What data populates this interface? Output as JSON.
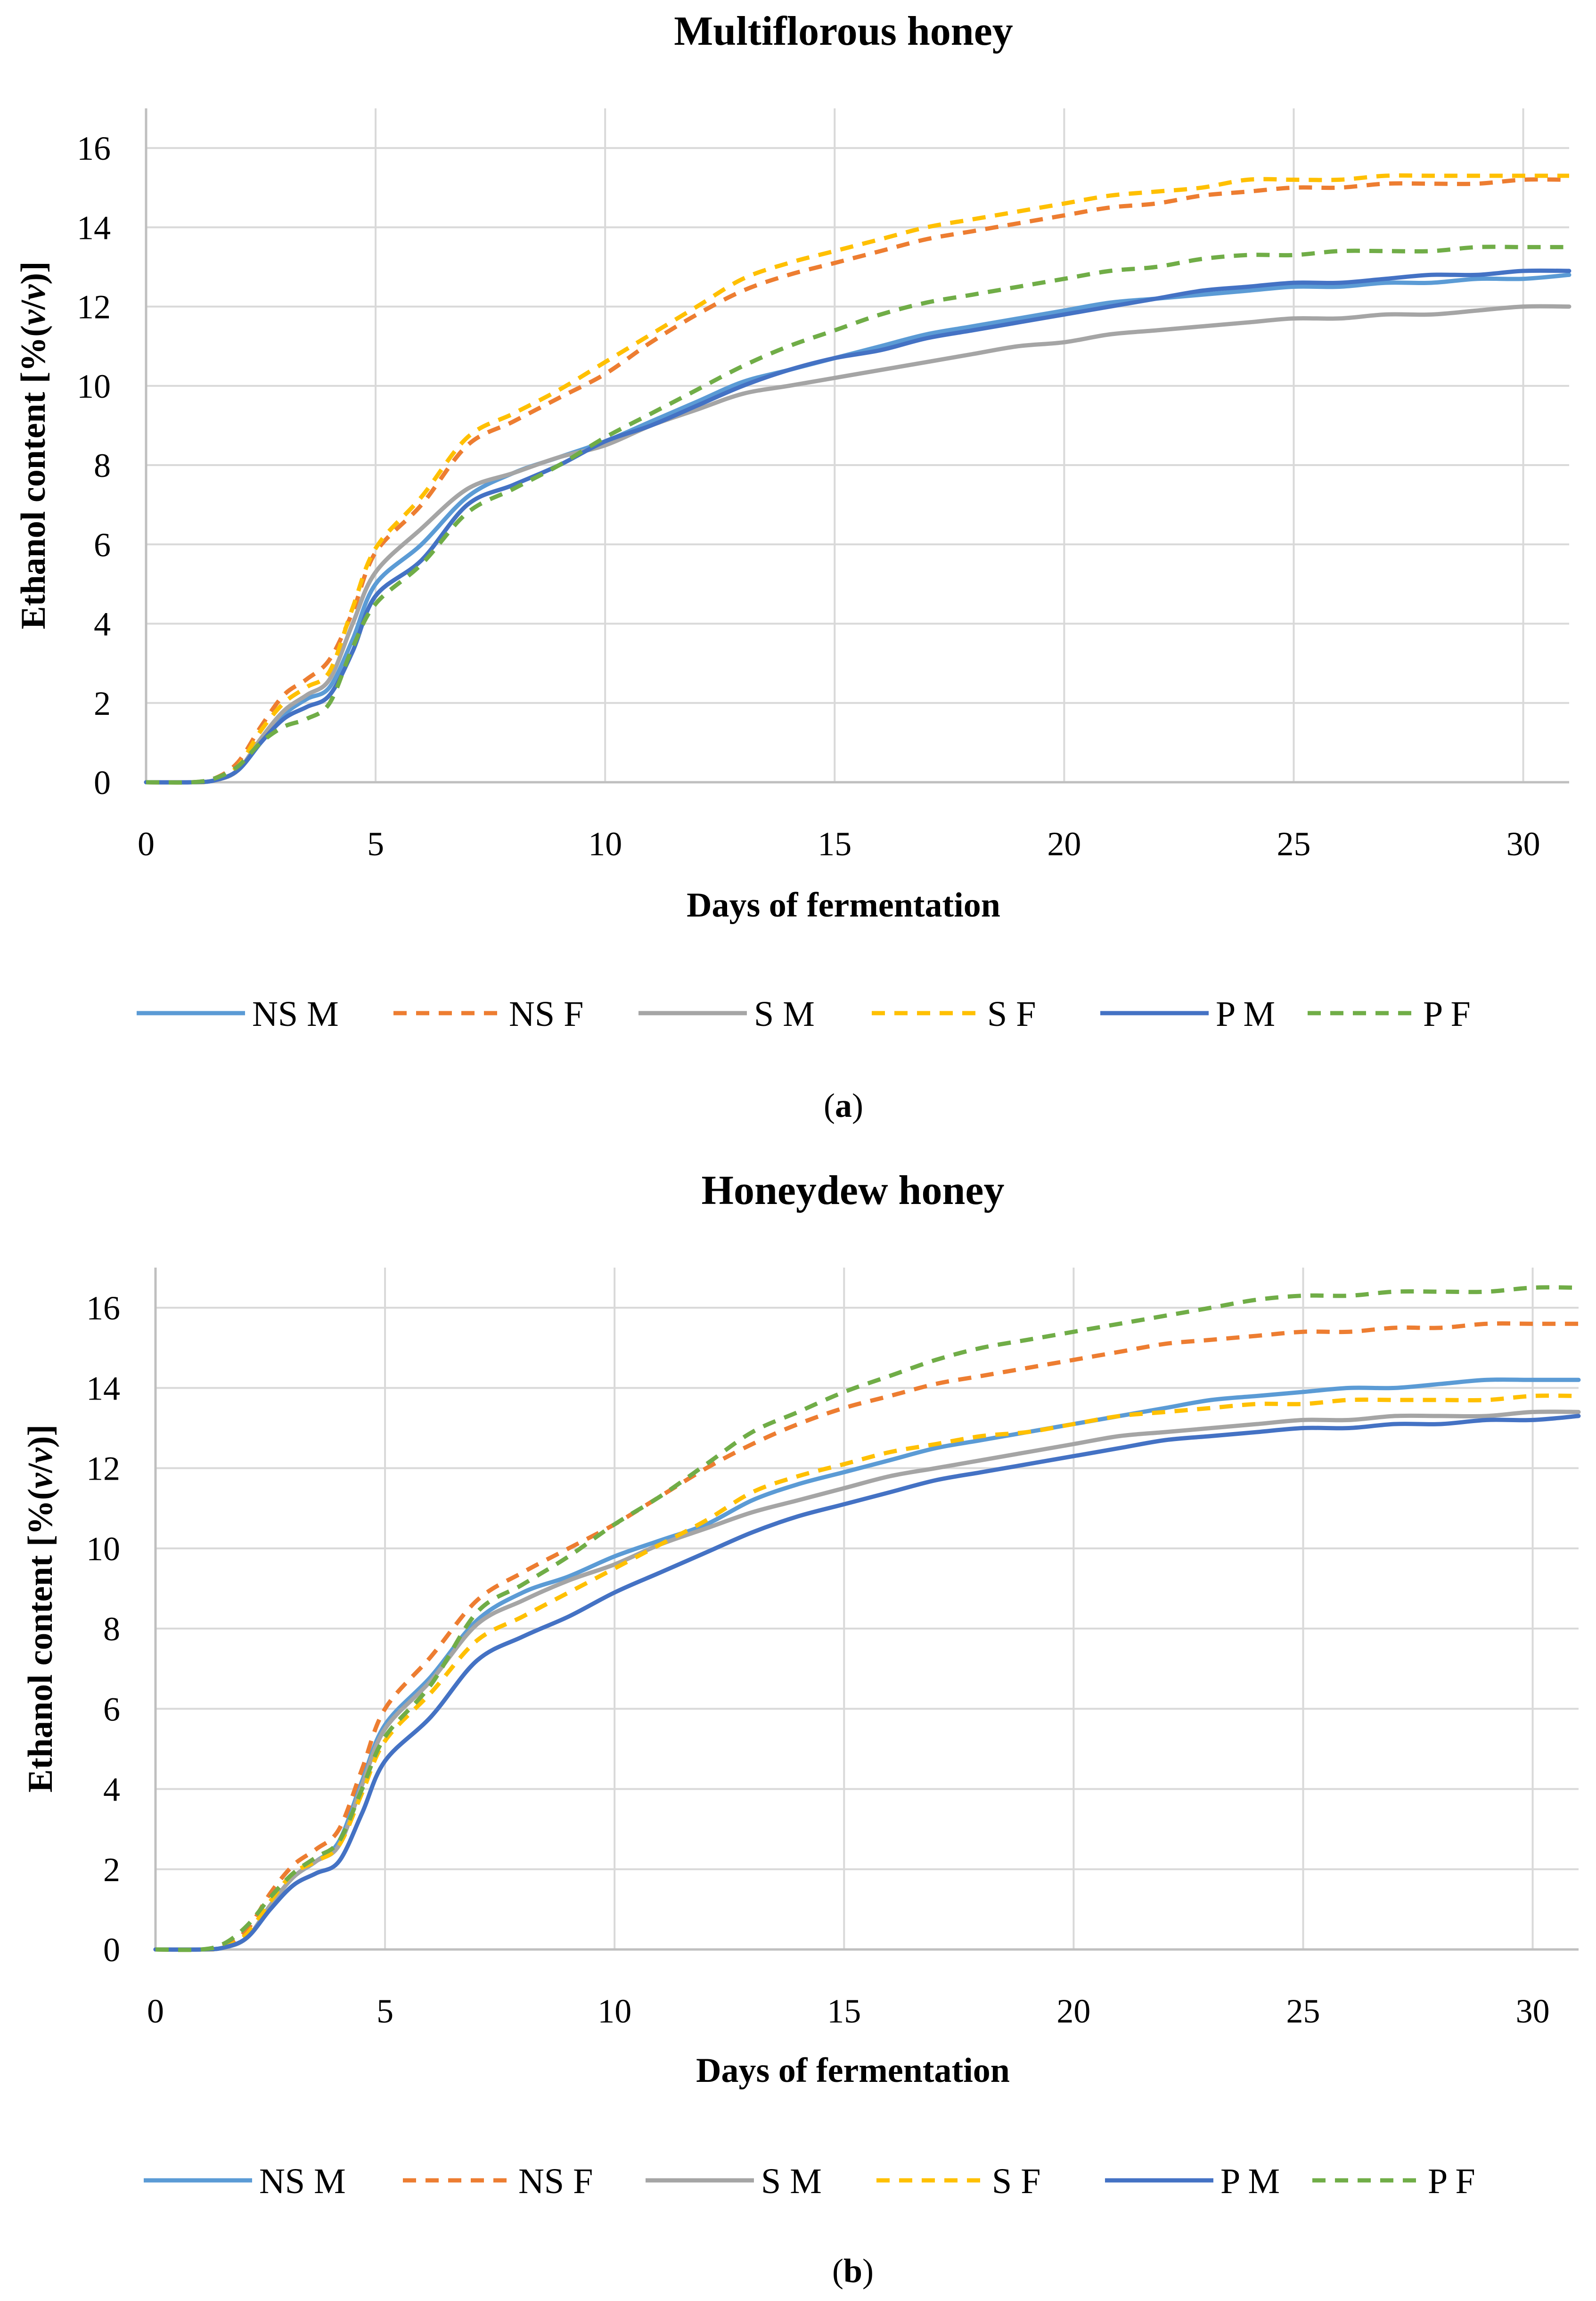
{
  "chart_data": [
    {
      "type": "line",
      "title": "Multiflorous honey",
      "xlabel": "Days of fermentation",
      "ylabel_prefix": "Ethanol content [%(",
      "ylabel_v1": "v",
      "ylabel_slash": "/",
      "ylabel_v2": "v",
      "ylabel_suffix": ")]",
      "panel_label_open": "(",
      "panel_label_letter": "a",
      "panel_label_close": ")",
      "xlim": [
        0,
        31
      ],
      "ylim": [
        0,
        17
      ],
      "xticks": [
        "0",
        "5",
        "10",
        "15",
        "20",
        "25",
        "30"
      ],
      "yticks": [
        "0",
        "2",
        "4",
        "6",
        "8",
        "10",
        "12",
        "14",
        "16"
      ],
      "x": [
        0,
        1,
        1.5,
        2,
        2.5,
        3,
        3.5,
        4,
        4.5,
        5,
        6,
        7,
        8,
        9,
        10,
        11,
        12,
        13,
        14,
        15,
        16,
        17,
        18,
        19,
        20,
        21,
        22,
        23,
        24,
        25,
        26,
        27,
        28,
        29,
        30,
        31
      ],
      "series": [
        {
          "name": "NS M",
          "color": "#5B9BD5",
          "dash": false,
          "values": [
            0,
            0,
            0.05,
            0.3,
            1.0,
            1.7,
            2.1,
            2.4,
            3.6,
            5.0,
            6.0,
            7.2,
            7.8,
            8.2,
            8.6,
            9.1,
            9.6,
            10.1,
            10.4,
            10.7,
            11.0,
            11.3,
            11.5,
            11.7,
            11.9,
            12.1,
            12.2,
            12.3,
            12.4,
            12.5,
            12.5,
            12.6,
            12.6,
            12.7,
            12.7,
            12.8
          ]
        },
        {
          "name": "NS F",
          "color": "#ED7D31",
          "dash": true,
          "values": [
            0,
            0,
            0.1,
            0.5,
            1.4,
            2.2,
            2.6,
            3.1,
            4.3,
            5.8,
            7.0,
            8.5,
            9.1,
            9.7,
            10.3,
            11.1,
            11.8,
            12.4,
            12.8,
            13.1,
            13.4,
            13.7,
            13.9,
            14.1,
            14.3,
            14.5,
            14.6,
            14.8,
            14.9,
            15.0,
            15.0,
            15.1,
            15.1,
            15.1,
            15.2,
            15.2
          ]
        },
        {
          "name": "S M",
          "color": "#A5A5A5",
          "dash": false,
          "values": [
            0,
            0,
            0.05,
            0.3,
            1.1,
            1.8,
            2.2,
            2.6,
            4.0,
            5.3,
            6.4,
            7.4,
            7.8,
            8.2,
            8.5,
            9.0,
            9.4,
            9.8,
            10.0,
            10.2,
            10.4,
            10.6,
            10.8,
            11.0,
            11.1,
            11.3,
            11.4,
            11.5,
            11.6,
            11.7,
            11.7,
            11.8,
            11.8,
            11.9,
            12.0,
            12.0
          ]
        },
        {
          "name": "S F",
          "color": "#FFC000",
          "dash": true,
          "values": [
            0,
            0,
            0.05,
            0.4,
            1.3,
            2.0,
            2.4,
            2.8,
            4.4,
            5.9,
            7.2,
            8.7,
            9.3,
            9.9,
            10.6,
            11.3,
            12.0,
            12.7,
            13.1,
            13.4,
            13.7,
            14.0,
            14.2,
            14.4,
            14.6,
            14.8,
            14.9,
            15.0,
            15.2,
            15.2,
            15.2,
            15.3,
            15.3,
            15.3,
            15.3,
            15.3
          ]
        },
        {
          "name": "P M",
          "color": "#4472C4",
          "dash": false,
          "values": [
            0,
            0,
            0.05,
            0.3,
            1.0,
            1.6,
            1.9,
            2.2,
            3.3,
            4.7,
            5.6,
            7.0,
            7.5,
            8.0,
            8.6,
            9.0,
            9.5,
            10.0,
            10.4,
            10.7,
            10.9,
            11.2,
            11.4,
            11.6,
            11.8,
            12.0,
            12.2,
            12.4,
            12.5,
            12.6,
            12.6,
            12.7,
            12.8,
            12.8,
            12.9,
            12.9
          ]
        },
        {
          "name": "P F",
          "color": "#70AD47",
          "dash": true,
          "values": [
            0,
            0,
            0.1,
            0.4,
            1.0,
            1.4,
            1.6,
            2.0,
            3.4,
            4.5,
            5.5,
            6.8,
            7.4,
            8.0,
            8.7,
            9.3,
            9.9,
            10.5,
            11.0,
            11.4,
            11.8,
            12.1,
            12.3,
            12.5,
            12.7,
            12.9,
            13.0,
            13.2,
            13.3,
            13.3,
            13.4,
            13.4,
            13.4,
            13.5,
            13.5,
            13.5
          ]
        }
      ]
    },
    {
      "type": "line",
      "title": "Honeydew honey",
      "xlabel": "Days of fermentation",
      "ylabel_prefix": "Ethanol content [%(",
      "ylabel_v1": "v",
      "ylabel_slash": "/",
      "ylabel_v2": "v",
      "ylabel_suffix": ")]",
      "panel_label_open": "(",
      "panel_label_letter": "b",
      "panel_label_close": ")",
      "xlim": [
        0,
        31
      ],
      "ylim": [
        0,
        17
      ],
      "xticks": [
        "0",
        "5",
        "10",
        "15",
        "20",
        "25",
        "30"
      ],
      "yticks": [
        "0",
        "2",
        "4",
        "6",
        "8",
        "10",
        "12",
        "14",
        "16"
      ],
      "x": [
        0,
        1,
        1.5,
        2,
        2.5,
        3,
        3.5,
        4,
        4.5,
        5,
        6,
        7,
        8,
        9,
        10,
        11,
        12,
        13,
        14,
        15,
        16,
        17,
        18,
        19,
        20,
        21,
        22,
        23,
        24,
        25,
        26,
        27,
        28,
        29,
        30,
        31
      ],
      "series": [
        {
          "name": "NS M",
          "color": "#5B9BD5",
          "dash": false,
          "values": [
            0,
            0,
            0.05,
            0.3,
            1.1,
            1.8,
            2.2,
            2.7,
            4.2,
            5.6,
            6.8,
            8.2,
            8.9,
            9.3,
            9.8,
            10.2,
            10.6,
            11.2,
            11.6,
            11.9,
            12.2,
            12.5,
            12.7,
            12.9,
            13.1,
            13.3,
            13.5,
            13.7,
            13.8,
            13.9,
            14.0,
            14.0,
            14.1,
            14.2,
            14.2,
            14.2
          ]
        },
        {
          "name": "NS F",
          "color": "#ED7D31",
          "dash": true,
          "values": [
            0,
            0,
            0.1,
            0.5,
            1.4,
            2.1,
            2.5,
            3.0,
            4.5,
            6.0,
            7.3,
            8.7,
            9.4,
            10.0,
            10.6,
            11.3,
            12.0,
            12.6,
            13.1,
            13.5,
            13.8,
            14.1,
            14.3,
            14.5,
            14.7,
            14.9,
            15.1,
            15.2,
            15.3,
            15.4,
            15.4,
            15.5,
            15.5,
            15.6,
            15.6,
            15.6
          ]
        },
        {
          "name": "S M",
          "color": "#A5A5A5",
          "dash": false,
          "values": [
            0,
            0,
            0.05,
            0.3,
            1.1,
            1.8,
            2.2,
            2.6,
            4.1,
            5.5,
            6.7,
            8.1,
            8.7,
            9.2,
            9.6,
            10.1,
            10.5,
            10.9,
            11.2,
            11.5,
            11.8,
            12.0,
            12.2,
            12.4,
            12.6,
            12.8,
            12.9,
            13.0,
            13.1,
            13.2,
            13.2,
            13.3,
            13.3,
            13.3,
            13.4,
            13.4
          ]
        },
        {
          "name": "S F",
          "color": "#FFC000",
          "dash": true,
          "values": [
            0,
            0,
            0.05,
            0.4,
            1.2,
            1.9,
            2.2,
            2.6,
            3.9,
            5.2,
            6.4,
            7.7,
            8.3,
            8.9,
            9.5,
            10.1,
            10.7,
            11.4,
            11.8,
            12.1,
            12.4,
            12.6,
            12.8,
            12.9,
            13.1,
            13.3,
            13.4,
            13.5,
            13.6,
            13.6,
            13.7,
            13.7,
            13.7,
            13.7,
            13.8,
            13.8
          ]
        },
        {
          "name": "P M",
          "color": "#4472C4",
          "dash": false,
          "values": [
            0,
            0,
            0.05,
            0.3,
            1.0,
            1.6,
            1.9,
            2.2,
            3.4,
            4.7,
            5.8,
            7.2,
            7.8,
            8.3,
            8.9,
            9.4,
            9.9,
            10.4,
            10.8,
            11.1,
            11.4,
            11.7,
            11.9,
            12.1,
            12.3,
            12.5,
            12.7,
            12.8,
            12.9,
            13.0,
            13.0,
            13.1,
            13.1,
            13.2,
            13.2,
            13.3
          ]
        },
        {
          "name": "P F",
          "color": "#70AD47",
          "dash": true,
          "values": [
            0,
            0,
            0.15,
            0.6,
            1.3,
            1.9,
            2.3,
            2.7,
            4.0,
            5.3,
            6.6,
            8.4,
            9.1,
            9.8,
            10.6,
            11.3,
            12.1,
            12.9,
            13.4,
            13.9,
            14.3,
            14.7,
            15.0,
            15.2,
            15.4,
            15.6,
            15.8,
            16.0,
            16.2,
            16.3,
            16.3,
            16.4,
            16.4,
            16.4,
            16.5,
            16.5
          ]
        }
      ]
    }
  ]
}
